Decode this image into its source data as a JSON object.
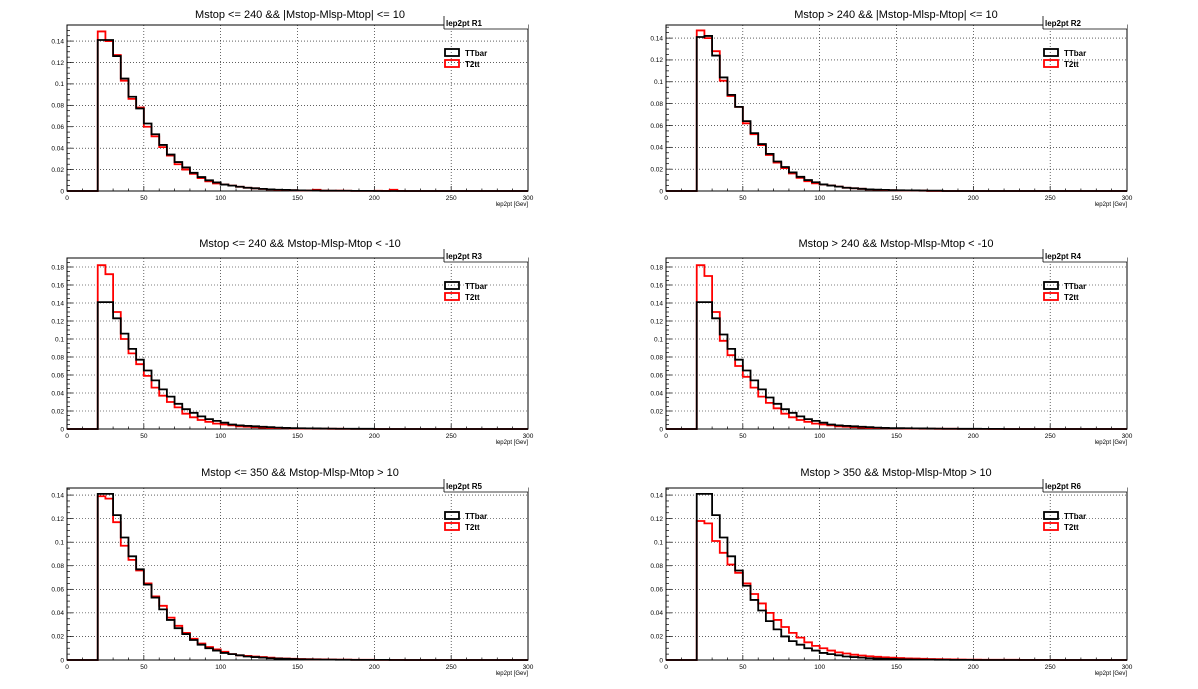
{
  "chart_data": [
    {
      "type": "histogram",
      "title": "Mstop <= 240 && |Mstop-Mlsp-Mtop| <= 10",
      "stat_label": "lep2pt  R1",
      "xlabel": "lep2pt [Gev]",
      "xlim": [
        0,
        300
      ],
      "ylim": [
        0,
        0.155
      ],
      "yticks": [
        0,
        0.02,
        0.04,
        0.06,
        0.08,
        0.1,
        0.12,
        0.14
      ],
      "xticks": [
        0,
        50,
        100,
        150,
        200,
        250,
        300
      ],
      "bin_edges_start": 20,
      "bin_width": 5,
      "series": [
        {
          "name": "TTbar",
          "color": "#000000",
          "values": [
            0.141,
            0.141,
            0.126,
            0.105,
            0.088,
            0.077,
            0.063,
            0.053,
            0.043,
            0.034,
            0.027,
            0.022,
            0.017,
            0.013,
            0.01,
            0.008,
            0.006,
            0.005,
            0.004,
            0.003,
            0.0025,
            0.002,
            0.0015,
            0.0012,
            0.001,
            0.0008,
            0.0006,
            0.0005,
            0.0004,
            0.0003,
            0.0003,
            0.0002,
            0.0002,
            0.0001,
            0.0001,
            0.0001
          ]
        },
        {
          "name": "T2tt",
          "color": "#ff0000",
          "values": [
            0.149,
            0.14,
            0.127,
            0.103,
            0.086,
            0.078,
            0.06,
            0.051,
            0.041,
            0.033,
            0.025,
            0.02,
            0.016,
            0.012,
            0.009,
            0.007,
            0.006,
            0.005,
            0.004,
            0.003,
            0.0025,
            0.002,
            0.0015,
            0.001,
            0.0008,
            0.0007,
            0.0005,
            0.0004,
            0.0012,
            0.0003,
            0.0002,
            0.0003,
            0.0002,
            0.0001,
            0.0001,
            0.0001,
            0.0002,
            0.0001,
            0.0012,
            0.0001
          ]
        }
      ]
    },
    {
      "type": "histogram",
      "title": "Mstop > 240 && |Mstop-Mlsp-Mtop| <= 10",
      "stat_label": "lep2pt  R2",
      "xlabel": "lep2pt [Gev]",
      "xlim": [
        0,
        300
      ],
      "ylim": [
        0,
        0.152
      ],
      "yticks": [
        0,
        0.02,
        0.04,
        0.06,
        0.08,
        0.1,
        0.12,
        0.14
      ],
      "xticks": [
        0,
        50,
        100,
        150,
        200,
        250,
        300
      ],
      "bin_edges_start": 20,
      "bin_width": 5,
      "series": [
        {
          "name": "TTbar",
          "color": "#000000",
          "values": [
            0.141,
            0.142,
            0.124,
            0.104,
            0.088,
            0.077,
            0.064,
            0.053,
            0.043,
            0.034,
            0.027,
            0.022,
            0.017,
            0.013,
            0.01,
            0.008,
            0.006,
            0.005,
            0.004,
            0.003,
            0.0025,
            0.002,
            0.0015,
            0.0012,
            0.001,
            0.0008,
            0.0007,
            0.0006,
            0.0005,
            0.0004,
            0.0003,
            0.0003
          ]
        },
        {
          "name": "T2tt",
          "color": "#ff0000",
          "values": [
            0.147,
            0.14,
            0.128,
            0.101,
            0.087,
            0.077,
            0.062,
            0.052,
            0.042,
            0.033,
            0.026,
            0.021,
            0.016,
            0.012,
            0.009,
            0.007,
            0.006,
            0.005,
            0.004,
            0.003,
            0.0025,
            0.002,
            0.0015,
            0.001,
            0.0008,
            0.0007,
            0.0006,
            0.0005,
            0.0004,
            0.0003
          ]
        }
      ]
    },
    {
      "type": "histogram",
      "title": "Mstop <= 240 && Mstop-Mlsp-Mtop < -10",
      "stat_label": "lep2pt  R3",
      "xlabel": "lep2pt [Gev]",
      "xlim": [
        0,
        300
      ],
      "ylim": [
        0,
        0.19
      ],
      "yticks": [
        0,
        0.02,
        0.04,
        0.06,
        0.08,
        0.1,
        0.12,
        0.14,
        0.16,
        0.18
      ],
      "xticks": [
        0,
        50,
        100,
        150,
        200,
        250,
        300
      ],
      "bin_edges_start": 20,
      "bin_width": 5,
      "series": [
        {
          "name": "TTbar",
          "color": "#000000",
          "values": [
            0.141,
            0.141,
            0.123,
            0.106,
            0.089,
            0.077,
            0.065,
            0.054,
            0.044,
            0.036,
            0.028,
            0.022,
            0.018,
            0.014,
            0.011,
            0.009,
            0.007,
            0.005,
            0.004,
            0.0035,
            0.003,
            0.0025,
            0.002,
            0.0015,
            0.0012,
            0.001,
            0.0008,
            0.0007,
            0.0006,
            0.0005,
            0.0004,
            0.0003,
            0.0003,
            0.0002,
            0.0002,
            0.0002
          ]
        },
        {
          "name": "T2tt",
          "color": "#ff0000",
          "values": [
            0.182,
            0.172,
            0.13,
            0.1,
            0.084,
            0.072,
            0.059,
            0.046,
            0.037,
            0.03,
            0.024,
            0.017,
            0.013,
            0.01,
            0.008,
            0.006,
            0.005,
            0.004,
            0.003,
            0.0025,
            0.002,
            0.0015,
            0.0012,
            0.001,
            0.0008,
            0.0006,
            0.0005,
            0.0004,
            0.0003,
            0.0003,
            0.0002,
            0.0002,
            0.0001,
            0.0001,
            0.0001,
            0.0001
          ]
        }
      ]
    },
    {
      "type": "histogram",
      "title": "Mstop > 240 && Mstop-Mlsp-Mtop < -10",
      "stat_label": "lep2pt  R4",
      "xlabel": "lep2pt [Gev]",
      "xlim": [
        0,
        300
      ],
      "ylim": [
        0,
        0.19
      ],
      "yticks": [
        0,
        0.02,
        0.04,
        0.06,
        0.08,
        0.1,
        0.12,
        0.14,
        0.16,
        0.18
      ],
      "xticks": [
        0,
        50,
        100,
        150,
        200,
        250,
        300
      ],
      "bin_edges_start": 20,
      "bin_width": 5,
      "series": [
        {
          "name": "TTbar",
          "color": "#000000",
          "values": [
            0.141,
            0.141,
            0.123,
            0.105,
            0.089,
            0.077,
            0.065,
            0.054,
            0.044,
            0.035,
            0.028,
            0.022,
            0.018,
            0.014,
            0.011,
            0.009,
            0.007,
            0.005,
            0.004,
            0.0035,
            0.003,
            0.0025,
            0.002,
            0.0015,
            0.0012,
            0.001,
            0.0009,
            0.0008,
            0.0007,
            0.0006,
            0.0005,
            0.0004,
            0.0003,
            0.0003,
            0.0002,
            0.0002,
            0.0002,
            0.0001,
            0.0001,
            0.0001
          ]
        },
        {
          "name": "T2tt",
          "color": "#ff0000",
          "values": [
            0.182,
            0.17,
            0.13,
            0.098,
            0.082,
            0.07,
            0.058,
            0.046,
            0.036,
            0.029,
            0.023,
            0.017,
            0.013,
            0.01,
            0.008,
            0.006,
            0.005,
            0.004,
            0.003,
            0.0025,
            0.002,
            0.0015,
            0.0012,
            0.001,
            0.0008,
            0.0007,
            0.0006,
            0.0005,
            0.0004,
            0.0003,
            0.0003,
            0.0002,
            0.0002,
            0.0002,
            0.0001,
            0.0001,
            0.0001,
            0.0001
          ]
        }
      ]
    },
    {
      "type": "histogram",
      "title": "Mstop <= 350 && Mstop-Mlsp-Mtop > 10",
      "stat_label": "lep2pt  R5",
      "xlabel": "lep2pt [Gev]",
      "xlim": [
        0,
        300
      ],
      "ylim": [
        0,
        0.146
      ],
      "yticks": [
        0,
        0.02,
        0.04,
        0.06,
        0.08,
        0.1,
        0.12,
        0.14
      ],
      "xticks": [
        0,
        50,
        100,
        150,
        200,
        250,
        300
      ],
      "bin_edges_start": 20,
      "bin_width": 5,
      "series": [
        {
          "name": "TTbar",
          "color": "#000000",
          "values": [
            0.141,
            0.141,
            0.123,
            0.104,
            0.088,
            0.077,
            0.064,
            0.053,
            0.043,
            0.034,
            0.027,
            0.022,
            0.017,
            0.013,
            0.01,
            0.008,
            0.006,
            0.005,
            0.004,
            0.003,
            0.0025,
            0.002,
            0.0015,
            0.0012,
            0.001,
            0.0008,
            0.0006,
            0.0005,
            0.0004,
            0.0003,
            0.0003,
            0.0002,
            0.0002,
            0.0001,
            0.0001,
            0.0001,
            0.0001,
            0.0001
          ]
        },
        {
          "name": "T2tt",
          "color": "#ff0000",
          "values": [
            0.139,
            0.137,
            0.117,
            0.097,
            0.085,
            0.076,
            0.065,
            0.054,
            0.046,
            0.036,
            0.029,
            0.023,
            0.018,
            0.014,
            0.011,
            0.009,
            0.007,
            0.005,
            0.004,
            0.0035,
            0.003,
            0.0025,
            0.002,
            0.0015,
            0.0012,
            0.001,
            0.0008,
            0.0007,
            0.0006,
            0.0005,
            0.0004,
            0.0003,
            0.0003,
            0.0002,
            0.0002,
            0.0002,
            0.0001,
            0.0001,
            0.0001,
            0.0001
          ]
        }
      ]
    },
    {
      "type": "histogram",
      "title": "Mstop > 350 && Mstop-Mlsp-Mtop > 10",
      "stat_label": "lep2pt  R6",
      "xlabel": "lep2pt [Gev]",
      "xlim": [
        0,
        300
      ],
      "ylim": [
        0,
        0.146
      ],
      "yticks": [
        0,
        0.02,
        0.04,
        0.06,
        0.08,
        0.1,
        0.12,
        0.14
      ],
      "xticks": [
        0,
        50,
        100,
        150,
        200,
        250,
        300
      ],
      "bin_edges_start": 20,
      "bin_width": 5,
      "series": [
        {
          "name": "TTbar",
          "color": "#000000",
          "values": [
            0.141,
            0.141,
            0.123,
            0.104,
            0.088,
            0.076,
            0.063,
            0.051,
            0.042,
            0.033,
            0.026,
            0.02,
            0.016,
            0.013,
            0.01,
            0.008,
            0.006,
            0.005,
            0.004,
            0.003,
            0.0025,
            0.002,
            0.0015,
            0.0012,
            0.001,
            0.0008,
            0.0006,
            0.0005,
            0.0004,
            0.0003,
            0.0003,
            0.0002,
            0.0002,
            0.0001,
            0.0001,
            0.0001
          ]
        },
        {
          "name": "T2tt",
          "color": "#ff0000",
          "values": [
            0.118,
            0.116,
            0.101,
            0.091,
            0.081,
            0.074,
            0.065,
            0.056,
            0.048,
            0.04,
            0.034,
            0.028,
            0.023,
            0.019,
            0.015,
            0.012,
            0.01,
            0.008,
            0.0065,
            0.0055,
            0.0045,
            0.0038,
            0.0032,
            0.0027,
            0.0023,
            0.002,
            0.0017,
            0.0014,
            0.0012,
            0.001,
            0.0008,
            0.0007,
            0.0006,
            0.0005,
            0.0004,
            0.0003,
            0.0003,
            0.0002,
            0.0002,
            0.0002,
            0.0002,
            0.0002,
            0.0001,
            0.0001,
            0.0001,
            0.0001,
            0.0001
          ]
        }
      ]
    }
  ]
}
